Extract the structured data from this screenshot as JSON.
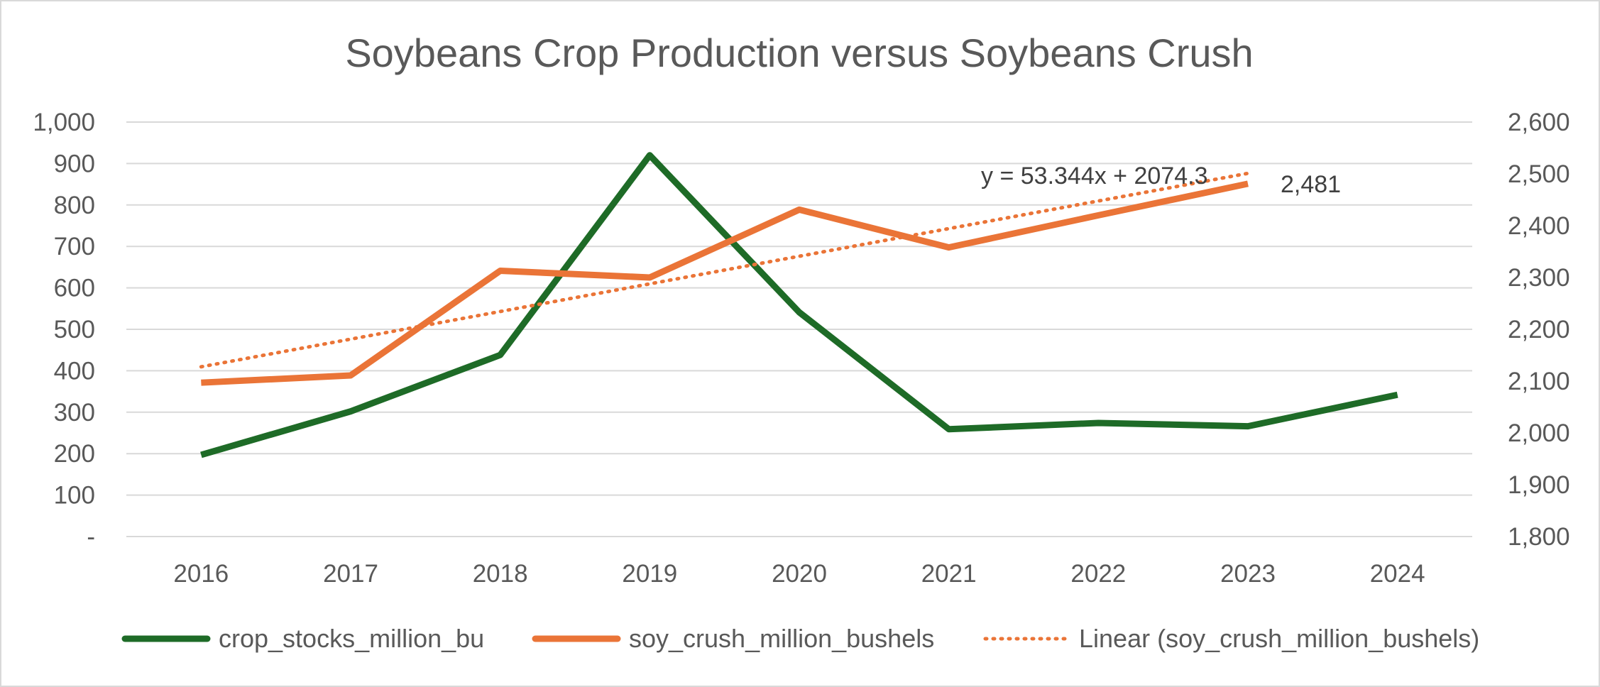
{
  "chart_data": {
    "type": "line",
    "title": "Soybeans Crop Production versus Soybeans Crush",
    "categories": [
      "2016",
      "2017",
      "2018",
      "2019",
      "2020",
      "2021",
      "2022",
      "2023",
      "2024"
    ],
    "y_left": {
      "ylim": [
        0,
        1000
      ],
      "ticks": [
        0,
        100,
        200,
        300,
        400,
        500,
        600,
        700,
        800,
        900,
        1000
      ],
      "tick_labels": [
        "-",
        "100",
        "200",
        "300",
        "400",
        "500",
        "600",
        "700",
        "800",
        "900",
        "1,000"
      ],
      "grid": true
    },
    "y_right": {
      "ylim": [
        1800,
        2600
      ],
      "ticks": [
        1800,
        1900,
        2000,
        2100,
        2200,
        2300,
        2400,
        2500,
        2600
      ],
      "tick_labels": [
        "1,800",
        "1,900",
        "2,000",
        "2,100",
        "2,200",
        "2,300",
        "2,400",
        "2,500",
        "2,600"
      ]
    },
    "series": [
      {
        "name": "crop_stocks_million_bu",
        "axis": "left",
        "color": "#1e6b27",
        "style": "solid",
        "values": [
          197,
          302,
          438,
          920,
          541,
          259,
          274,
          266,
          342
        ]
      },
      {
        "name": "soy_crush_million_bushels",
        "axis": "right",
        "color": "#ea7437",
        "style": "solid",
        "values": [
          2097,
          2111,
          2313,
          2300,
          2431,
          2358,
          2420,
          2481,
          null
        ]
      },
      {
        "name": "Linear (soy_crush_million_bushels)",
        "axis": "right",
        "color": "#ea7437",
        "style": "dotted",
        "trendline": {
          "slope": 53.344,
          "intercept": 2074.3,
          "x_start": 1,
          "x_end": 8
        }
      }
    ],
    "annotations": {
      "trend_equation": "y = 53.344x + 2074.3",
      "last_value_label": "2,481"
    },
    "legend_position": "bottom"
  }
}
